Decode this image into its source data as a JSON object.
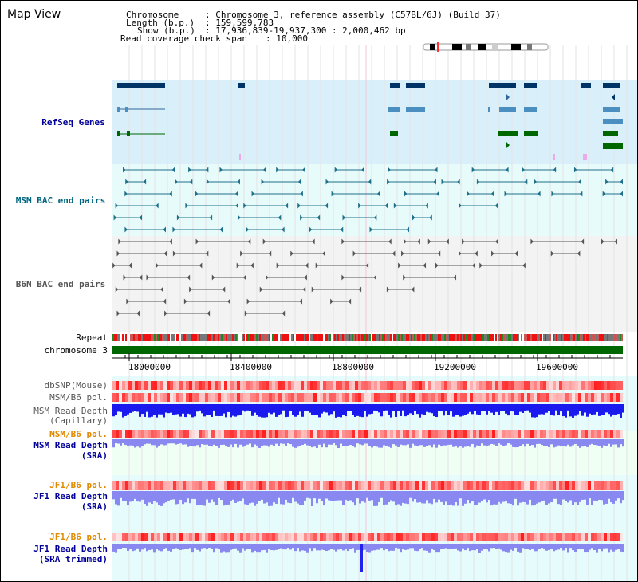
{
  "app": {
    "title": "Map View"
  },
  "header": {
    "chromosome_label": "Chromosome",
    "chromosome_value": ": Chromosome 3, reference assembly (C57BL/6J) (Build 37)",
    "length_label": "Length (b.p.)",
    "length_value": ": 159,599,783",
    "show_label": "Show (b.p.)",
    "show_value": ": 17,936,839-19,937,300 : 2,000,462 bp",
    "read_coverage_label": "Read coverage check span",
    "read_coverage_value": ": 10,000"
  },
  "tracks": {
    "refseq": "RefSeq Genes",
    "msm_bac": "MSM BAC end pairs",
    "b6n_bac": "B6N BAC end pairs",
    "repeat": "Repeat",
    "chromosome": "chromosome 3",
    "dbsnp": "dbSNP(Mouse)",
    "msm_b6_pol_1": "MSM/B6 pol.",
    "msm_read_depth_cap_1": "MSM Read Depth",
    "msm_read_depth_cap_2": "(Capillary)",
    "msm_b6_pol_2": "MSM/B6 pol.",
    "msm_read_depth_sra_1": "MSM Read Depth",
    "msm_read_depth_sra_2": "(SRA)",
    "jf1_b6_pol_1": "JF1/B6 pol.",
    "jf1_read_depth_sra_1": "JF1 Read Depth",
    "jf1_read_depth_sra_2": "(SRA)",
    "jf1_b6_pol_2": "JF1/B6 pol.",
    "jf1_read_depth_trim_1": "JF1 Read Depth",
    "jf1_read_depth_trim_2": "(SRA trimmed)"
  },
  "ruler": {
    "ticks": [
      "18000000",
      "18400000",
      "18800000",
      "19200000",
      "19600000"
    ]
  },
  "colors": {
    "refseq_dark": "#003366",
    "refseq_mid": "#4a8fbf",
    "refseq_green": "#006600",
    "msm_bac": "#1f6f8b",
    "b6n_bac": "#555555",
    "label_blue": "#000099",
    "label_teal": "#006680",
    "label_orange": "#e08a00",
    "chrom_green": "#006600",
    "depth_blue": "#1a1aee",
    "depth_light": "#8888f0"
  }
}
